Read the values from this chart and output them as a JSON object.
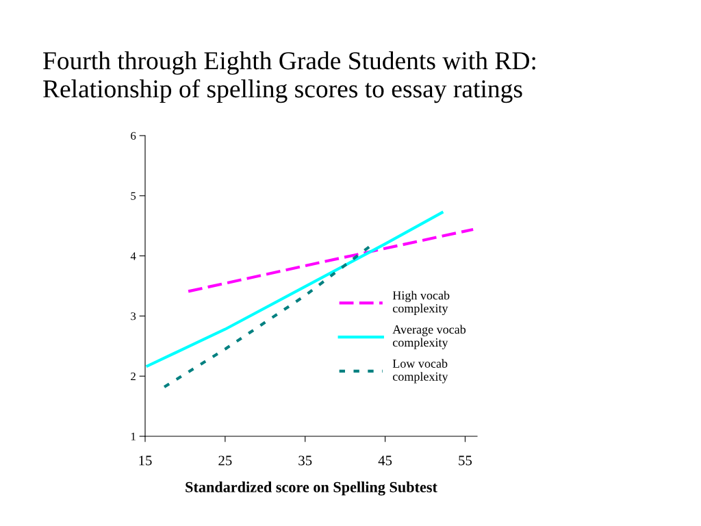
{
  "chart_data": {
    "type": "line",
    "title": "Fourth through Eighth Grade Students with RD:\nRelationship of spelling scores to essay ratings",
    "xlabel": "Standardized score on Spelling Subtest",
    "series": [
      {
        "name": "High vocab\ncomplexity",
        "color": "#ff00ff",
        "line_style": "dashed",
        "x": [
          20.4,
          30,
          40,
          56.0
        ],
        "values": [
          3.41,
          3.69,
          3.98,
          4.44
        ]
      },
      {
        "name": "Average vocab\ncomplexity",
        "color": "#00ffff",
        "line_style": "solid",
        "x": [
          15.3,
          25,
          35,
          45,
          52.1
        ],
        "values": [
          2.17,
          2.78,
          3.49,
          4.2,
          4.72
        ]
      },
      {
        "name": "Low vocab\ncomplexity",
        "color": "#008080",
        "line_style": "dotted",
        "x": [
          17.4,
          25,
          35,
          43.3
        ],
        "values": [
          1.82,
          2.45,
          3.34,
          4.18
        ]
      }
    ],
    "xlim": [
      15,
      56.5
    ],
    "xticks": [
      15,
      25,
      35,
      45,
      55
    ],
    "ylim": [
      1,
      6
    ],
    "yticks": [
      1,
      2,
      3,
      4,
      5,
      6
    ],
    "grid": false,
    "legend": "right",
    "marker": "none"
  }
}
